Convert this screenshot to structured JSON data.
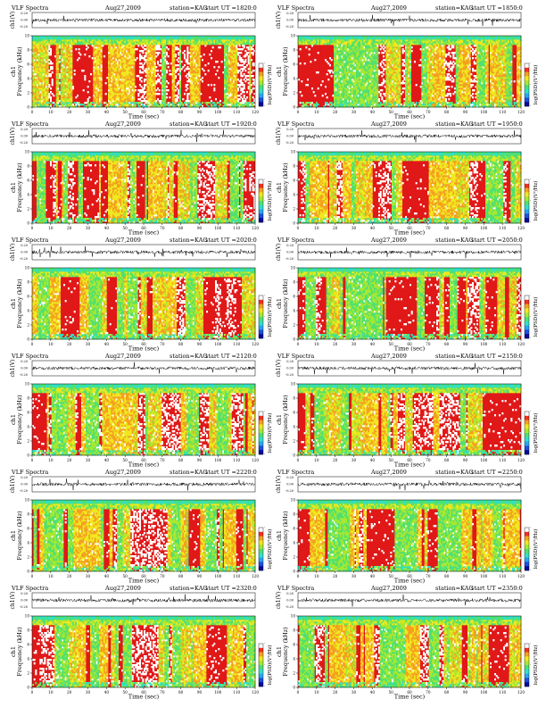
{
  "page": {
    "background": "#ffffff"
  },
  "colorscale": [
    "#0a0a9a",
    "#1f4fe0",
    "#27a7f0",
    "#2fe0c8",
    "#50e070",
    "#a8e830",
    "#f0e820",
    "#f4a020",
    "#f03020",
    "#ffffff"
  ],
  "chart_data": [
    {
      "type": "heatmap",
      "title": "VLF Spectra",
      "date": "Aug27,2009",
      "station": "station=KAG",
      "start": "start  UT  =1820:0",
      "waveform_label": "ch1(V)",
      "waveform_ticks": [
        "0.00",
        "0.20",
        "-0.20"
      ],
      "ylabel": "ch1\nFrequency (kHz)",
      "yticks": [
        "0",
        "2",
        "4",
        "6",
        "8",
        "10"
      ],
      "xlabel": "Time (sec)",
      "xticks": [
        "0",
        "10",
        "20",
        "30",
        "40",
        "50",
        "60",
        "70",
        "80",
        "90",
        "100",
        "110",
        "120"
      ],
      "xlim": [
        0,
        120
      ],
      "ylim": [
        0,
        10
      ],
      "colorbar_label": "log(PSD)(V²/Hz)",
      "colorbar_ticks": [
        "-",
        "-",
        "-"
      ],
      "seed": 11
    },
    {
      "type": "heatmap",
      "title": "VLF Spectra",
      "date": "Aug27,2009",
      "station": "station=KAG",
      "start": "start  UT  =1850:0",
      "waveform_label": "ch1(V)",
      "waveform_ticks": [
        "0.00",
        "0.20",
        "-0.20"
      ],
      "ylabel": "ch1\nFrequency (kHz)",
      "yticks": [
        "0",
        "2",
        "4",
        "6",
        "8",
        "10"
      ],
      "xlabel": "Time (sec)",
      "xticks": [
        "0",
        "10",
        "20",
        "30",
        "40",
        "50",
        "60",
        "70",
        "80",
        "90",
        "100",
        "110",
        "120"
      ],
      "xlim": [
        0,
        120
      ],
      "ylim": [
        0,
        10
      ],
      "colorbar_label": "log(PSD)(V²/Hz)",
      "colorbar_ticks": [
        "-",
        "-",
        "-"
      ],
      "seed": 23
    },
    {
      "type": "heatmap",
      "title": "VLF Spectra",
      "date": "Aug27,2009",
      "station": "station=KAG",
      "start": "start  UT  =1920:0",
      "waveform_label": "ch1(V)",
      "waveform_ticks": [
        "0.00",
        "0.20",
        "-0.20"
      ],
      "ylabel": "ch1\nFrequency (kHz)",
      "yticks": [
        "0",
        "2",
        "4",
        "6",
        "8",
        "10"
      ],
      "xlabel": "Time (sec)",
      "xticks": [
        "0",
        "10",
        "20",
        "30",
        "40",
        "50",
        "60",
        "70",
        "80",
        "90",
        "100",
        "110",
        "120"
      ],
      "xlim": [
        0,
        120
      ],
      "ylim": [
        0,
        10
      ],
      "colorbar_label": "log(PSD)(V²/Hz)",
      "colorbar_ticks": [
        "-",
        "-",
        "-"
      ],
      "seed": 37
    },
    {
      "type": "heatmap",
      "title": "VLF Spectra",
      "date": "Aug27,2009",
      "station": "station=KAG",
      "start": "start  UT  =1950:0",
      "waveform_label": "ch1(V)",
      "waveform_ticks": [
        "0.00",
        "0.20",
        "-0.20"
      ],
      "ylabel": "ch1\nFrequency (kHz)",
      "yticks": [
        "0",
        "2",
        "4",
        "6",
        "8",
        "10"
      ],
      "xlabel": "Time (sec)",
      "xticks": [
        "0",
        "10",
        "20",
        "30",
        "40",
        "50",
        "60",
        "70",
        "80",
        "90",
        "100",
        "110",
        "120"
      ],
      "xlim": [
        0,
        120
      ],
      "ylim": [
        0,
        10
      ],
      "colorbar_label": "log(PSD)(V²/Hz)",
      "colorbar_ticks": [
        "-",
        "-",
        "-"
      ],
      "seed": 41
    },
    {
      "type": "heatmap",
      "title": "VLF Spectra",
      "date": "Aug27,2009",
      "station": "station=KAG",
      "start": "start  UT  =2020:0",
      "waveform_label": "ch1(V)",
      "waveform_ticks": [
        "0.00",
        "0.20",
        "-0.20"
      ],
      "ylabel": "ch1\nFrequency (kHz)",
      "yticks": [
        "0",
        "2",
        "4",
        "6",
        "8",
        "10"
      ],
      "xlabel": "Time (sec)",
      "xticks": [
        "0",
        "10",
        "20",
        "30",
        "40",
        "50",
        "60",
        "70",
        "80",
        "90",
        "100",
        "110",
        "120"
      ],
      "xlim": [
        0,
        120
      ],
      "ylim": [
        0,
        10
      ],
      "colorbar_label": "log(PSD)(V²/Hz)",
      "colorbar_ticks": [
        "-",
        "-",
        "-"
      ],
      "seed": 53
    },
    {
      "type": "heatmap",
      "title": "VLF Spectra",
      "date": "Aug27,2009",
      "station": "station=KAG",
      "start": "start  UT  =2050:0",
      "waveform_label": "ch1(V)",
      "waveform_ticks": [
        "0.00",
        "0.20",
        "-0.20"
      ],
      "ylabel": "ch1\nFrequency (kHz)",
      "yticks": [
        "0",
        "2",
        "4",
        "6",
        "8",
        "10"
      ],
      "xlabel": "Time (sec)",
      "xticks": [
        "0",
        "10",
        "20",
        "30",
        "40",
        "50",
        "60",
        "70",
        "80",
        "90",
        "100",
        "110",
        "120"
      ],
      "xlim": [
        0,
        120
      ],
      "ylim": [
        0,
        10
      ],
      "colorbar_label": "log(PSD)(V²/Hz)",
      "colorbar_ticks": [
        "-",
        "-",
        "-"
      ],
      "seed": 67
    },
    {
      "type": "heatmap",
      "title": "VLF Spectra",
      "date": "Aug27,2009",
      "station": "station=KAG",
      "start": "start  UT  =2120:0",
      "waveform_label": "ch1(V)",
      "waveform_ticks": [
        "0.00",
        "0.20",
        "-0.20"
      ],
      "ylabel": "ch1\nFrequency (kHz)",
      "yticks": [
        "0",
        "2",
        "4",
        "6",
        "8",
        "10"
      ],
      "xlabel": "Time (sec)",
      "xticks": [
        "0",
        "10",
        "20",
        "30",
        "40",
        "50",
        "60",
        "70",
        "80",
        "90",
        "100",
        "110",
        "120"
      ],
      "xlim": [
        0,
        120
      ],
      "ylim": [
        0,
        10
      ],
      "colorbar_label": "log(PSD)(V²/Hz)",
      "colorbar_ticks": [
        "-",
        "-",
        "-"
      ],
      "seed": 71
    },
    {
      "type": "heatmap",
      "title": "VLF Spectra",
      "date": "Aug27,2009",
      "station": "station=KAG",
      "start": "start  UT  =2150:0",
      "waveform_label": "ch1(V)",
      "waveform_ticks": [
        "0.00",
        "0.20",
        "-0.20"
      ],
      "ylabel": "ch1\nFrequency (kHz)",
      "yticks": [
        "0",
        "2",
        "4",
        "6",
        "8",
        "10"
      ],
      "xlabel": "Time (sec)",
      "xticks": [
        "0",
        "10",
        "20",
        "30",
        "40",
        "50",
        "60",
        "70",
        "80",
        "90",
        "100",
        "110",
        "120"
      ],
      "xlim": [
        0,
        120
      ],
      "ylim": [
        0,
        10
      ],
      "colorbar_label": "log(PSD)(V²/Hz)",
      "colorbar_ticks": [
        "-",
        "-",
        "-"
      ],
      "seed": 83
    },
    {
      "type": "heatmap",
      "title": "VLF Spectra",
      "date": "Aug27,2009",
      "station": "station=KAG",
      "start": "start  UT  =2220:0",
      "waveform_label": "ch1(V)",
      "waveform_ticks": [
        "0.00",
        "0.20",
        "-0.20"
      ],
      "ylabel": "ch1\nFrequency (kHz)",
      "yticks": [
        "0",
        "2",
        "4",
        "6",
        "8",
        "10"
      ],
      "xlabel": "Time (sec)",
      "xticks": [
        "0",
        "10",
        "20",
        "30",
        "40",
        "50",
        "60",
        "70",
        "80",
        "90",
        "100",
        "110",
        "120"
      ],
      "xlim": [
        0,
        120
      ],
      "ylim": [
        0,
        10
      ],
      "colorbar_label": "log(PSD)(V²/Hz)",
      "colorbar_ticks": [
        "-",
        "-",
        "-"
      ],
      "seed": 97
    },
    {
      "type": "heatmap",
      "title": "VLF Spectra",
      "date": "Aug27,2009",
      "station": "station=KAG",
      "start": "start  UT  =2250:0",
      "waveform_label": "ch1(V)",
      "waveform_ticks": [
        "0.00",
        "0.20",
        "-0.20"
      ],
      "ylabel": "ch1\nFrequency (kHz)",
      "yticks": [
        "0",
        "2",
        "4",
        "6",
        "8",
        "10"
      ],
      "xlabel": "Time (sec)",
      "xticks": [
        "0",
        "10",
        "20",
        "30",
        "40",
        "50",
        "60",
        "70",
        "80",
        "90",
        "100",
        "110",
        "120"
      ],
      "xlim": [
        0,
        120
      ],
      "ylim": [
        0,
        10
      ],
      "colorbar_label": "log(PSD)(V²/Hz)",
      "colorbar_ticks": [
        "-",
        "-",
        "-"
      ],
      "seed": 101
    },
    {
      "type": "heatmap",
      "title": "VLF Spectra",
      "date": "Aug27,2009",
      "station": "station=KAG",
      "start": "start  UT  =2320:0",
      "waveform_label": "ch1(V)",
      "waveform_ticks": [
        "0.00",
        "0.20",
        "-0.20"
      ],
      "ylabel": "ch1\nFrequency (kHz)",
      "yticks": [
        "0",
        "2",
        "4",
        "6",
        "8",
        "10"
      ],
      "xlabel": "Time (sec)",
      "xticks": [
        "0",
        "10",
        "20",
        "30",
        "40",
        "50",
        "60",
        "70",
        "80",
        "90",
        "100",
        "110",
        "120"
      ],
      "xlim": [
        0,
        120
      ],
      "ylim": [
        0,
        10
      ],
      "colorbar_label": "log(PSD)(V²/Hz)",
      "colorbar_ticks": [
        "-",
        "-",
        "-"
      ],
      "seed": 113
    },
    {
      "type": "heatmap",
      "title": "VLF Spectra",
      "date": "Aug27,2009",
      "station": "station=KAG",
      "start": "start  UT  =2350:0",
      "waveform_label": "ch1(V)",
      "waveform_ticks": [
        "0.00",
        "0.20",
        "-0.20"
      ],
      "ylabel": "ch1\nFrequency (kHz)",
      "yticks": [
        "0",
        "2",
        "4",
        "6",
        "8",
        "10"
      ],
      "xlabel": "Time (sec)",
      "xticks": [
        "0",
        "10",
        "20",
        "30",
        "40",
        "50",
        "60",
        "70",
        "80",
        "90",
        "100",
        "110",
        "120"
      ],
      "xlim": [
        0,
        120
      ],
      "ylim": [
        0,
        10
      ],
      "colorbar_label": "log(PSD)(V²/Hz)",
      "colorbar_ticks": [
        "-",
        "-",
        "-"
      ],
      "seed": 127
    }
  ]
}
